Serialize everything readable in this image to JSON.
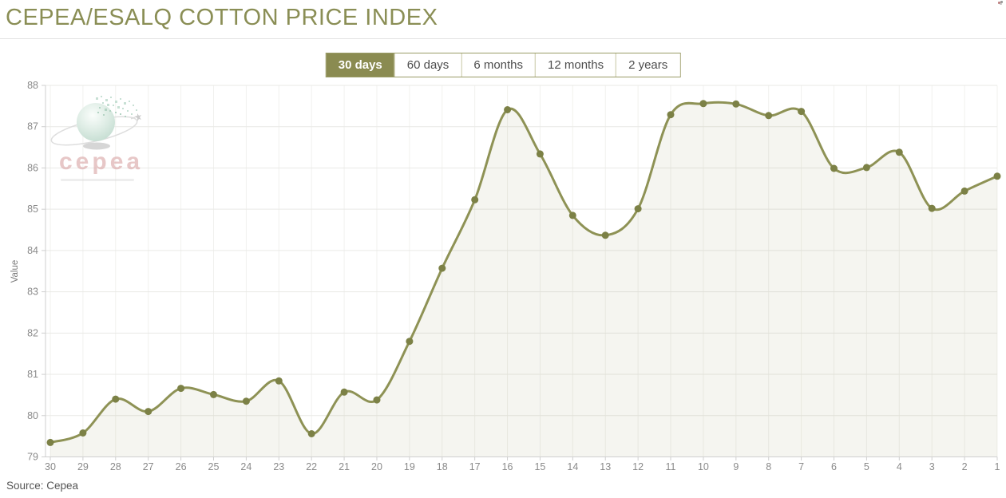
{
  "header": {
    "title": "CEPEA/ESALQ COTTON PRICE INDEX"
  },
  "tabs": [
    {
      "label": "30 days",
      "active": true
    },
    {
      "label": "60 days",
      "active": false
    },
    {
      "label": "6 months",
      "active": false
    },
    {
      "label": "12 months",
      "active": false
    },
    {
      "label": "2 years",
      "active": false
    }
  ],
  "watermark": {
    "text": "cepea"
  },
  "footer": {
    "source": "Source: Cepea"
  },
  "colors": {
    "accent": "#8a8b51",
    "title": "#8a8e55",
    "line": "#8e9255",
    "marker": "#7c8146",
    "area_fill": "rgba(139,143,85,0.09)",
    "grid": "#e9e9e6",
    "grid_vertical": "#f1f1ee",
    "axis": "#cfcfcf",
    "tick_text": "#8a8a8a"
  },
  "chart_data": {
    "type": "line",
    "title": "CEPEA/ESALQ COTTON PRICE INDEX",
    "xlabel": "",
    "ylabel": "Value",
    "ylim": [
      79,
      88
    ],
    "yticks": [
      79,
      80,
      81,
      82,
      83,
      84,
      85,
      86,
      87,
      88
    ],
    "grid": true,
    "legend": "none",
    "categories": [
      "30",
      "29",
      "28",
      "27",
      "26",
      "25",
      "24",
      "23",
      "22",
      "21",
      "20",
      "19",
      "18",
      "17",
      "16",
      "15",
      "14",
      "13",
      "12",
      "11",
      "10",
      "9",
      "8",
      "7",
      "6",
      "5",
      "4",
      "3",
      "2",
      "1"
    ],
    "values": [
      79.35,
      79.58,
      80.4,
      80.1,
      80.66,
      80.51,
      80.35,
      80.84,
      79.56,
      80.57,
      80.38,
      81.8,
      83.57,
      85.23,
      87.41,
      86.34,
      84.85,
      84.37,
      85.01,
      87.29,
      87.56,
      87.55,
      87.27,
      87.37,
      85.99,
      86.01,
      86.38,
      85.02,
      85.44,
      85.8
    ]
  }
}
